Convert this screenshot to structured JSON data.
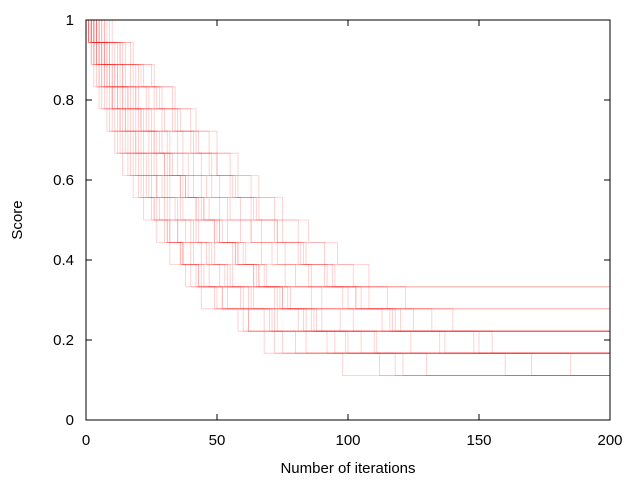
{
  "chart_data": {
    "type": "line",
    "title": "",
    "xlabel": "Number of iterations",
    "ylabel": "Score",
    "xlim": [
      0,
      200
    ],
    "ylim": [
      0,
      1
    ],
    "xticks": [
      0,
      50,
      100,
      150,
      200
    ],
    "yticks": [
      0,
      0.2,
      0.4,
      0.6,
      0.8,
      1
    ],
    "x_tick_labels": [
      "0",
      "50",
      "100",
      "150",
      "200"
    ],
    "y_tick_labels": [
      "0",
      "0.2",
      "0.4",
      "0.6",
      "0.8",
      "1"
    ],
    "grid": false,
    "legend": "none",
    "series_color": "#ff0000",
    "series_opacity": 0.22,
    "score_levels": [
      1,
      0.944,
      0.889,
      0.833,
      0.778,
      0.722,
      0.667,
      0.611,
      0.556,
      0.5,
      0.444,
      0.389,
      0.333,
      0.278,
      0.222,
      0.167,
      0.111
    ],
    "series": [
      {
        "x": [
          0,
          2,
          4,
          7,
          10,
          13,
          16,
          20,
          24,
          28,
          32,
          36,
          40,
          44,
          200
        ],
        "y": [
          1,
          0.944,
          0.889,
          0.833,
          0.778,
          0.722,
          0.667,
          0.611,
          0.556,
          0.5,
          0.444,
          0.389,
          0.333,
          0.278,
          0.278
        ]
      },
      {
        "x": [
          0,
          3,
          6,
          9,
          12,
          15,
          19,
          23,
          27,
          31,
          35,
          40,
          45,
          52,
          60,
          200
        ],
        "y": [
          1,
          0.944,
          0.889,
          0.833,
          0.778,
          0.722,
          0.667,
          0.611,
          0.556,
          0.5,
          0.444,
          0.389,
          0.333,
          0.278,
          0.222,
          0.222
        ]
      },
      {
        "x": [
          0,
          1,
          3,
          5,
          8,
          11,
          14,
          18,
          22,
          26,
          31,
          37,
          44,
          52,
          62,
          75,
          200
        ],
        "y": [
          1,
          0.944,
          0.889,
          0.833,
          0.778,
          0.722,
          0.667,
          0.611,
          0.556,
          0.5,
          0.444,
          0.389,
          0.333,
          0.278,
          0.222,
          0.167,
          0.167
        ]
      },
      {
        "x": [
          0,
          4,
          8,
          12,
          17,
          22,
          27,
          32,
          38,
          44,
          51,
          58,
          66,
          75,
          88,
          110,
          200
        ],
        "y": [
          1,
          0.944,
          0.889,
          0.833,
          0.778,
          0.722,
          0.667,
          0.611,
          0.556,
          0.5,
          0.444,
          0.389,
          0.333,
          0.278,
          0.222,
          0.167,
          0.167
        ]
      },
      {
        "x": [
          0,
          2,
          5,
          9,
          13,
          17,
          21,
          26,
          31,
          36,
          42,
          48,
          55,
          63,
          72,
          200
        ],
        "y": [
          1,
          0.944,
          0.889,
          0.833,
          0.778,
          0.722,
          0.667,
          0.611,
          0.556,
          0.5,
          0.444,
          0.389,
          0.333,
          0.278,
          0.222,
          0.222
        ]
      },
      {
        "x": [
          0,
          5,
          10,
          15,
          20,
          26,
          32,
          39,
          46,
          54,
          63,
          73,
          85,
          100,
          120,
          150,
          200
        ],
        "y": [
          1,
          0.944,
          0.889,
          0.833,
          0.778,
          0.722,
          0.667,
          0.611,
          0.556,
          0.5,
          0.444,
          0.389,
          0.333,
          0.278,
          0.222,
          0.167,
          0.167
        ]
      },
      {
        "x": [
          0,
          1,
          2,
          4,
          6,
          9,
          12,
          16,
          20,
          25,
          30,
          36,
          42,
          50,
          58,
          68,
          200
        ],
        "y": [
          1,
          0.944,
          0.889,
          0.833,
          0.778,
          0.722,
          0.667,
          0.611,
          0.556,
          0.5,
          0.444,
          0.389,
          0.333,
          0.278,
          0.222,
          0.167,
          0.167
        ]
      },
      {
        "x": [
          0,
          3,
          7,
          11,
          15,
          20,
          25,
          30,
          36,
          42,
          49,
          56,
          64,
          73,
          83,
          95,
          118,
          200
        ],
        "y": [
          1,
          0.944,
          0.889,
          0.833,
          0.778,
          0.722,
          0.667,
          0.611,
          0.556,
          0.5,
          0.444,
          0.389,
          0.333,
          0.278,
          0.222,
          0.167,
          0.111,
          0.111
        ]
      },
      {
        "x": [
          0,
          6,
          12,
          18,
          24,
          30,
          37,
          44,
          51,
          59,
          67,
          76,
          86,
          98,
          113,
          200
        ],
        "y": [
          1,
          0.944,
          0.889,
          0.833,
          0.778,
          0.722,
          0.667,
          0.611,
          0.556,
          0.5,
          0.444,
          0.389,
          0.333,
          0.278,
          0.222,
          0.222
        ]
      },
      {
        "x": [
          0,
          2,
          4,
          6,
          9,
          12,
          15,
          19,
          23,
          27,
          32,
          37,
          43,
          49,
          200
        ],
        "y": [
          1,
          0.944,
          0.889,
          0.833,
          0.778,
          0.722,
          0.667,
          0.611,
          0.556,
          0.5,
          0.444,
          0.389,
          0.333,
          0.278,
          0.278
        ]
      },
      {
        "x": [
          0,
          4,
          9,
          14,
          19,
          24,
          29,
          35,
          41,
          47,
          54,
          61,
          69,
          78,
          90,
          105,
          130,
          200
        ],
        "y": [
          1,
          0.944,
          0.889,
          0.833,
          0.778,
          0.722,
          0.667,
          0.611,
          0.556,
          0.5,
          0.444,
          0.389,
          0.333,
          0.278,
          0.222,
          0.167,
          0.111,
          0.111
        ]
      },
      {
        "x": [
          0,
          1,
          3,
          6,
          10,
          14,
          18,
          22,
          27,
          32,
          38,
          44,
          51,
          59,
          68,
          80,
          200
        ],
        "y": [
          1,
          0.944,
          0.889,
          0.833,
          0.778,
          0.722,
          0.667,
          0.611,
          0.556,
          0.5,
          0.444,
          0.389,
          0.333,
          0.278,
          0.222,
          0.167,
          0.167
        ]
      },
      {
        "x": [
          0,
          7,
          14,
          21,
          28,
          35,
          42,
          50,
          58,
          66,
          75,
          84,
          94,
          105,
          118,
          135,
          160,
          200
        ],
        "y": [
          1,
          0.944,
          0.889,
          0.833,
          0.778,
          0.722,
          0.667,
          0.611,
          0.556,
          0.5,
          0.444,
          0.389,
          0.333,
          0.278,
          0.222,
          0.167,
          0.111,
          0.111
        ]
      },
      {
        "x": [
          0,
          3,
          5,
          8,
          11,
          15,
          19,
          24,
          29,
          34,
          40,
          46,
          53,
          60,
          70,
          200
        ],
        "y": [
          1,
          0.944,
          0.889,
          0.833,
          0.778,
          0.722,
          0.667,
          0.611,
          0.556,
          0.5,
          0.444,
          0.389,
          0.333,
          0.278,
          0.222,
          0.222
        ]
      },
      {
        "x": [
          0,
          5,
          11,
          17,
          23,
          29,
          35,
          41,
          48,
          55,
          63,
          71,
          80,
          90,
          102,
          124,
          200
        ],
        "y": [
          1,
          0.944,
          0.889,
          0.833,
          0.778,
          0.722,
          0.667,
          0.611,
          0.556,
          0.5,
          0.444,
          0.389,
          0.333,
          0.278,
          0.222,
          0.167,
          0.167
        ]
      },
      {
        "x": [
          0,
          2,
          3,
          5,
          7,
          10,
          13,
          17,
          21,
          26,
          31,
          37,
          43,
          200
        ],
        "y": [
          1,
          0.944,
          0.889,
          0.833,
          0.778,
          0.722,
          0.667,
          0.611,
          0.556,
          0.5,
          0.444,
          0.389,
          0.333,
          0.333
        ]
      },
      {
        "x": [
          0,
          4,
          7,
          11,
          16,
          21,
          26,
          32,
          38,
          45,
          52,
          60,
          68,
          77,
          87,
          99,
          112,
          200
        ],
        "y": [
          1,
          0.944,
          0.889,
          0.833,
          0.778,
          0.722,
          0.667,
          0.611,
          0.556,
          0.5,
          0.444,
          0.389,
          0.333,
          0.278,
          0.222,
          0.167,
          0.111,
          0.111
        ]
      },
      {
        "x": [
          0,
          8,
          15,
          22,
          29,
          36,
          43,
          50,
          57,
          65,
          73,
          82,
          92,
          103,
          116,
          200
        ],
        "y": [
          1,
          0.944,
          0.889,
          0.833,
          0.778,
          0.722,
          0.667,
          0.611,
          0.556,
          0.5,
          0.444,
          0.389,
          0.333,
          0.278,
          0.222,
          0.222
        ]
      },
      {
        "x": [
          0,
          1,
          4,
          7,
          10,
          13,
          17,
          21,
          25,
          30,
          35,
          41,
          47,
          54,
          62,
          72,
          200
        ],
        "y": [
          1,
          0.944,
          0.889,
          0.833,
          0.778,
          0.722,
          0.667,
          0.611,
          0.556,
          0.5,
          0.444,
          0.389,
          0.333,
          0.278,
          0.222,
          0.167,
          0.167
        ]
      },
      {
        "x": [
          0,
          6,
          13,
          20,
          27,
          34,
          41,
          48,
          56,
          64,
          73,
          83,
          95,
          108,
          125,
          148,
          200
        ],
        "y": [
          1,
          0.944,
          0.889,
          0.833,
          0.778,
          0.722,
          0.667,
          0.611,
          0.556,
          0.5,
          0.444,
          0.389,
          0.333,
          0.278,
          0.222,
          0.167,
          0.167
        ]
      },
      {
        "x": [
          0,
          2,
          6,
          10,
          14,
          18,
          22,
          27,
          32,
          37,
          43,
          49,
          56,
          64,
          73,
          84,
          98,
          200
        ],
        "y": [
          1,
          0.944,
          0.889,
          0.833,
          0.778,
          0.722,
          0.667,
          0.611,
          0.556,
          0.5,
          0.444,
          0.389,
          0.333,
          0.278,
          0.222,
          0.167,
          0.111,
          0.111
        ]
      },
      {
        "x": [
          0,
          3,
          6,
          10,
          14,
          19,
          24,
          30,
          36,
          42,
          49,
          57,
          65,
          74,
          84,
          200
        ],
        "y": [
          1,
          0.944,
          0.889,
          0.833,
          0.778,
          0.722,
          0.667,
          0.611,
          0.556,
          0.5,
          0.444,
          0.389,
          0.333,
          0.278,
          0.222,
          0.222
        ]
      },
      {
        "x": [
          0,
          9,
          17,
          25,
          33,
          40,
          47,
          55,
          63,
          72,
          81,
          91,
          102,
          115,
          132,
          155,
          185,
          200
        ],
        "y": [
          1,
          0.944,
          0.889,
          0.833,
          0.778,
          0.722,
          0.667,
          0.611,
          0.556,
          0.5,
          0.444,
          0.389,
          0.333,
          0.278,
          0.222,
          0.167,
          0.111,
          0.111
        ]
      },
      {
        "x": [
          0,
          1,
          2,
          3,
          5,
          8,
          11,
          14,
          18,
          22,
          27,
          32,
          38,
          200
        ],
        "y": [
          1,
          0.944,
          0.889,
          0.833,
          0.778,
          0.722,
          0.667,
          0.611,
          0.556,
          0.5,
          0.444,
          0.389,
          0.333,
          0.333
        ]
      },
      {
        "x": [
          0,
          4,
          8,
          13,
          18,
          23,
          28,
          33,
          39,
          45,
          51,
          58,
          66,
          75,
          86,
          100,
          121,
          200
        ],
        "y": [
          1,
          0.944,
          0.889,
          0.833,
          0.778,
          0.722,
          0.667,
          0.611,
          0.556,
          0.5,
          0.444,
          0.389,
          0.333,
          0.278,
          0.222,
          0.167,
          0.111,
          0.111
        ]
      },
      {
        "x": [
          0,
          5,
          9,
          14,
          19,
          25,
          31,
          37,
          44,
          51,
          59,
          67,
          76,
          86,
          97,
          111,
          200
        ],
        "y": [
          1,
          0.944,
          0.889,
          0.833,
          0.778,
          0.722,
          0.667,
          0.611,
          0.556,
          0.5,
          0.444,
          0.389,
          0.333,
          0.278,
          0.222,
          0.167,
          0.167
        ]
      },
      {
        "x": [
          0,
          2,
          5,
          8,
          12,
          16,
          20,
          25,
          30,
          35,
          41,
          47,
          54,
          62,
          71,
          200
        ],
        "y": [
          1,
          0.944,
          0.889,
          0.833,
          0.778,
          0.722,
          0.667,
          0.611,
          0.556,
          0.5,
          0.444,
          0.389,
          0.333,
          0.278,
          0.222,
          0.222
        ]
      },
      {
        "x": [
          0,
          7,
          13,
          19,
          26,
          33,
          40,
          47,
          55,
          63,
          72,
          81,
          91,
          103,
          117,
          137,
          170,
          200
        ],
        "y": [
          1,
          0.944,
          0.889,
          0.833,
          0.778,
          0.722,
          0.667,
          0.611,
          0.556,
          0.5,
          0.444,
          0.389,
          0.333,
          0.278,
          0.222,
          0.167,
          0.111,
          0.111
        ]
      },
      {
        "x": [
          0,
          3,
          7,
          12,
          16,
          21,
          26,
          31,
          37,
          43,
          50,
          57,
          64,
          72,
          81,
          92,
          200
        ],
        "y": [
          1,
          0.944,
          0.889,
          0.833,
          0.778,
          0.722,
          0.667,
          0.611,
          0.556,
          0.5,
          0.444,
          0.389,
          0.333,
          0.278,
          0.222,
          0.167,
          0.167
        ]
      },
      {
        "x": [
          0,
          10,
          18,
          26,
          34,
          42,
          50,
          58,
          66,
          75,
          85,
          96,
          108,
          122,
          140,
          200
        ],
        "y": [
          1,
          0.944,
          0.889,
          0.833,
          0.778,
          0.722,
          0.667,
          0.611,
          0.556,
          0.5,
          0.444,
          0.389,
          0.333,
          0.278,
          0.222,
          0.222
        ]
      }
    ]
  }
}
